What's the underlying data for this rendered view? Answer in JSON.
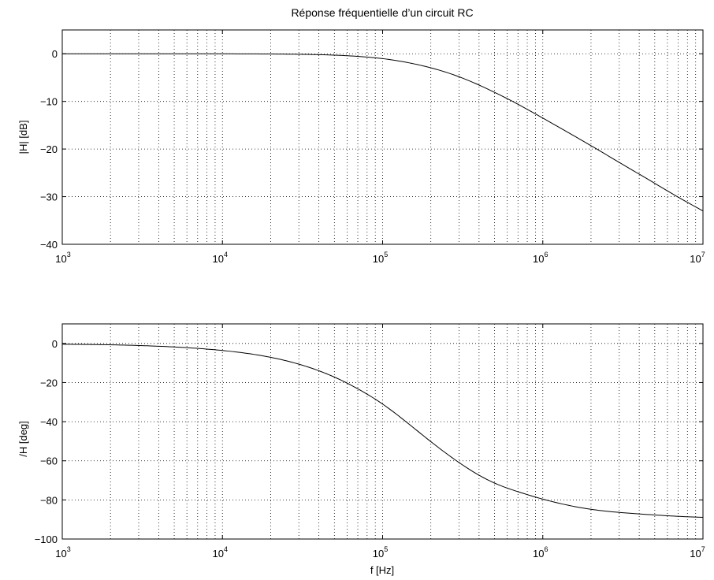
{
  "chart_data": [
    {
      "type": "line",
      "title": "Réponse fréquentielle d’un circuit RC",
      "xlabel": "",
      "ylabel": "|H| [dB]",
      "xscale": "log",
      "xlim": [
        1000,
        10000000
      ],
      "ylim": [
        -40,
        5
      ],
      "grid": true,
      "xticks": [
        {
          "value": 1000,
          "base": "10",
          "exp": "3"
        },
        {
          "value": 10000,
          "base": "10",
          "exp": "4"
        },
        {
          "value": 100000,
          "base": "10",
          "exp": "5"
        },
        {
          "value": 1000000,
          "base": "10",
          "exp": "6"
        },
        {
          "value": 10000000,
          "base": "10",
          "exp": "7"
        }
      ],
      "yticks": [
        {
          "value": 0,
          "label": "0"
        },
        {
          "value": -10,
          "label": "−10"
        },
        {
          "value": -20,
          "label": "−20"
        },
        {
          "value": -30,
          "label": "−30"
        },
        {
          "value": -40,
          "label": "−40"
        }
      ],
      "series": [
        {
          "x": [
            1000,
            2000,
            5000,
            10000,
            20000,
            30000,
            50000,
            70000,
            100000,
            150000,
            200000,
            300000,
            500000,
            700000,
            1000000,
            2000000,
            3000000,
            5000000,
            7000000,
            10000000
          ],
          "values": [
            0.0,
            0.0,
            0.0,
            -0.01,
            -0.05,
            -0.11,
            -0.29,
            -0.55,
            -1.02,
            -1.98,
            -2.95,
            -4.83,
            -8.1,
            -10.6,
            -13.5,
            -19.3,
            -22.8,
            -27.2,
            -30.1,
            -33.0
          ]
        }
      ]
    },
    {
      "type": "line",
      "title": "",
      "xlabel": "f [Hz]",
      "ylabel": "/H [deg]",
      "xscale": "log",
      "xlim": [
        1000,
        10000000
      ],
      "ylim": [
        -100,
        10
      ],
      "grid": true,
      "xticks": [
        {
          "value": 1000,
          "base": "10",
          "exp": "3"
        },
        {
          "value": 10000,
          "base": "10",
          "exp": "4"
        },
        {
          "value": 100000,
          "base": "10",
          "exp": "5"
        },
        {
          "value": 1000000,
          "base": "10",
          "exp": "6"
        },
        {
          "value": 10000000,
          "base": "10",
          "exp": "7"
        }
      ],
      "yticks": [
        {
          "value": 0,
          "label": "0"
        },
        {
          "value": -20,
          "label": "−20"
        },
        {
          "value": -40,
          "label": "−40"
        },
        {
          "value": -60,
          "label": "−60"
        },
        {
          "value": -80,
          "label": "−80"
        },
        {
          "value": -100,
          "label": "−100"
        }
      ],
      "series": [
        {
          "x": [
            1000,
            2000,
            5000,
            10000,
            20000,
            30000,
            50000,
            70000,
            100000,
            150000,
            200000,
            300000,
            500000,
            700000,
            1000000,
            2000000,
            3000000,
            5000000,
            7000000,
            10000000
          ],
          "values": [
            -0.4,
            -0.7,
            -1.8,
            -3.6,
            -7.1,
            -10.6,
            -17.2,
            -23.2,
            -31.0,
            -42.0,
            -50.2,
            -60.9,
            -71.4,
            -75.8,
            -79.6,
            -84.8,
            -86.4,
            -87.7,
            -88.4,
            -88.9
          ]
        }
      ]
    }
  ]
}
